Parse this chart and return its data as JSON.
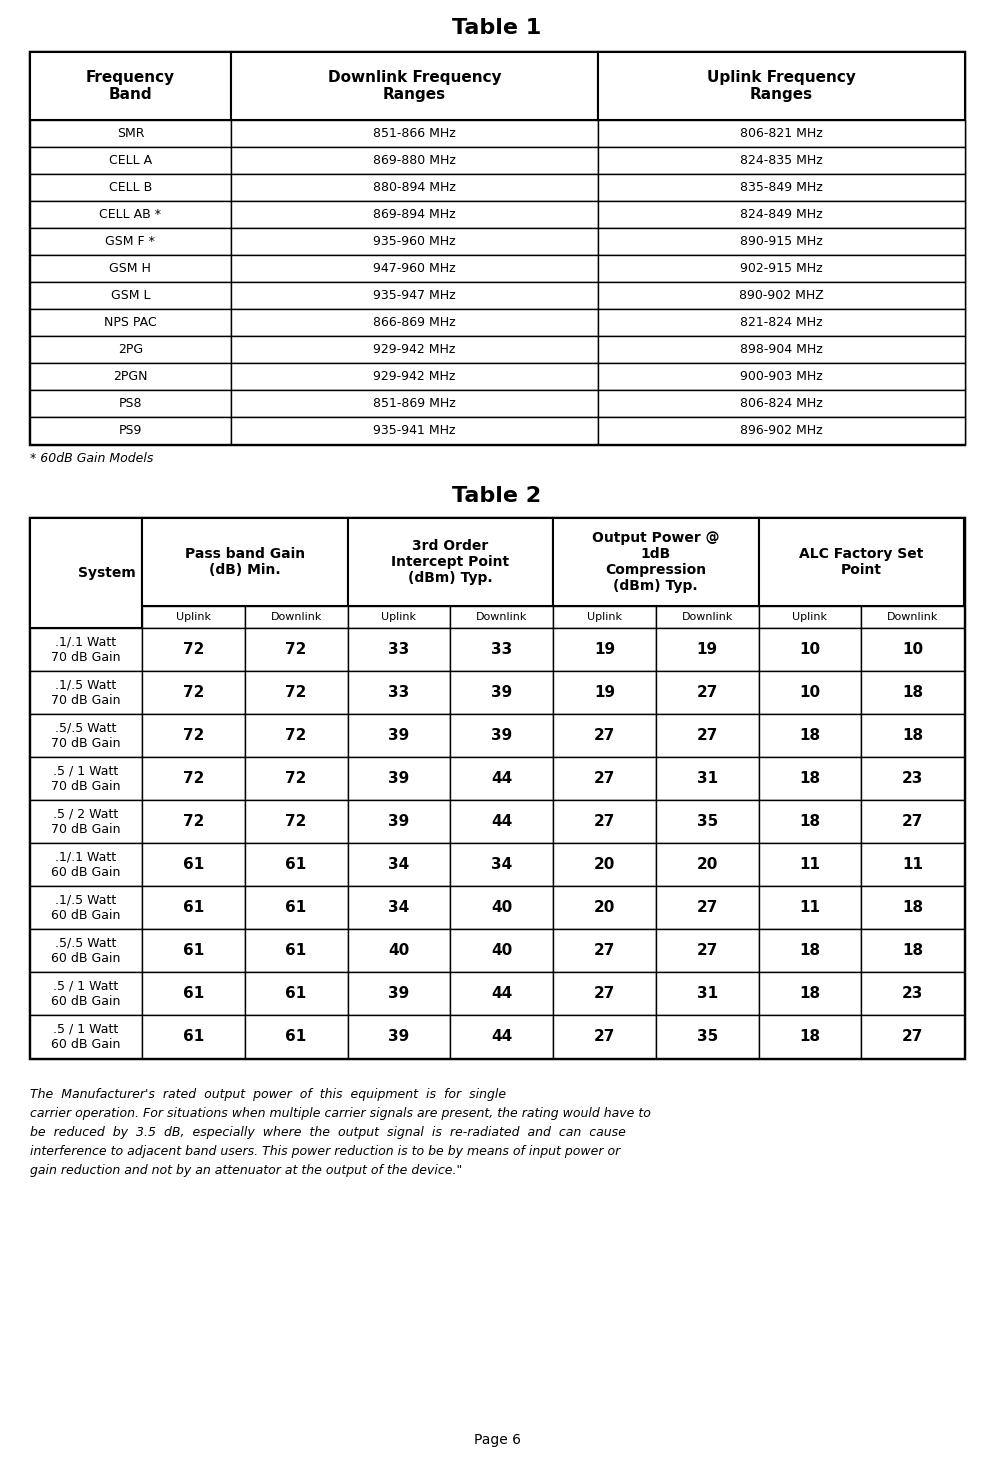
{
  "table1_title": "Table 1",
  "table1_headers": [
    "Frequency\nBand",
    "Downlink Frequency\nRanges",
    "Uplink Frequency\nRanges"
  ],
  "table1_rows": [
    [
      "SMR",
      "851-866 MHz",
      "806-821 MHz"
    ],
    [
      "CELL A",
      "869-880 MHz",
      "824-835 MHz"
    ],
    [
      "CELL B",
      "880-894 MHz",
      "835-849 MHz"
    ],
    [
      "CELL AB *",
      "869-894 MHz",
      "824-849 MHz"
    ],
    [
      "GSM F *",
      "935-960 MHz",
      "890-915 MHz"
    ],
    [
      "GSM H",
      "947-960 MHz",
      "902-915 MHz"
    ],
    [
      "GSM L",
      "935-947 MHz",
      "890-902 MHZ"
    ],
    [
      "NPS PAC",
      "866-869 MHz",
      "821-824 MHz"
    ],
    [
      "2PG",
      "929-942 MHz",
      "898-904 MHz"
    ],
    [
      "2PGN",
      "929-942 MHz",
      "900-903 MHz"
    ],
    [
      "PS8",
      "851-869 MHz",
      "806-824 MHz"
    ],
    [
      "PS9",
      "935-941 MHz",
      "896-902 MHz"
    ]
  ],
  "table1_footnote": "* 60dB Gain Models",
  "table2_title": "Table 2",
  "table2_rows": [
    [
      ".1/.1 Watt\n70 dB Gain",
      "72",
      "72",
      "33",
      "33",
      "19",
      "19",
      "10",
      "10"
    ],
    [
      ".1/.5 Watt\n70 dB Gain",
      "72",
      "72",
      "33",
      "39",
      "19",
      "27",
      "10",
      "18"
    ],
    [
      ".5/.5 Watt\n70 dB Gain",
      "72",
      "72",
      "39",
      "39",
      "27",
      "27",
      "18",
      "18"
    ],
    [
      ".5 / 1 Watt\n70 dB Gain",
      "72",
      "72",
      "39",
      "44",
      "27",
      "31",
      "18",
      "23"
    ],
    [
      ".5 / 2 Watt\n70 dB Gain",
      "72",
      "72",
      "39",
      "44",
      "27",
      "35",
      "18",
      "27"
    ],
    [
      ".1/.1 Watt\n60 dB Gain",
      "61",
      "61",
      "34",
      "34",
      "20",
      "20",
      "11",
      "11"
    ],
    [
      ".1/.5 Watt\n60 dB Gain",
      "61",
      "61",
      "34",
      "40",
      "20",
      "27",
      "11",
      "18"
    ],
    [
      ".5/.5 Watt\n60 dB Gain",
      "61",
      "61",
      "40",
      "40",
      "27",
      "27",
      "18",
      "18"
    ],
    [
      ".5 / 1 Watt\n60 dB Gain",
      "61",
      "61",
      "39",
      "44",
      "27",
      "31",
      "18",
      "23"
    ],
    [
      ".5 / 1 Watt\n60 dB Gain",
      "61",
      "61",
      "39",
      "44",
      "27",
      "35",
      "18",
      "27"
    ]
  ],
  "footnote_lines": [
    "The  Manufacturer's  rated  output  power  of  this  equipment  is  for  single",
    "carrier operation. For situations when multiple carrier signals are present, the rating would have to",
    "be  reduced  by  3.5  dB,  especially  where  the  output  signal  is  re-radiated  and  can  cause",
    "interference to adjacent band users. This power reduction is to be by means of input power or",
    "gain reduction and not by an attenuator at the output of the device.\""
  ],
  "page_label": "Page 6",
  "bg_color": "#ffffff",
  "border_color": "#000000"
}
